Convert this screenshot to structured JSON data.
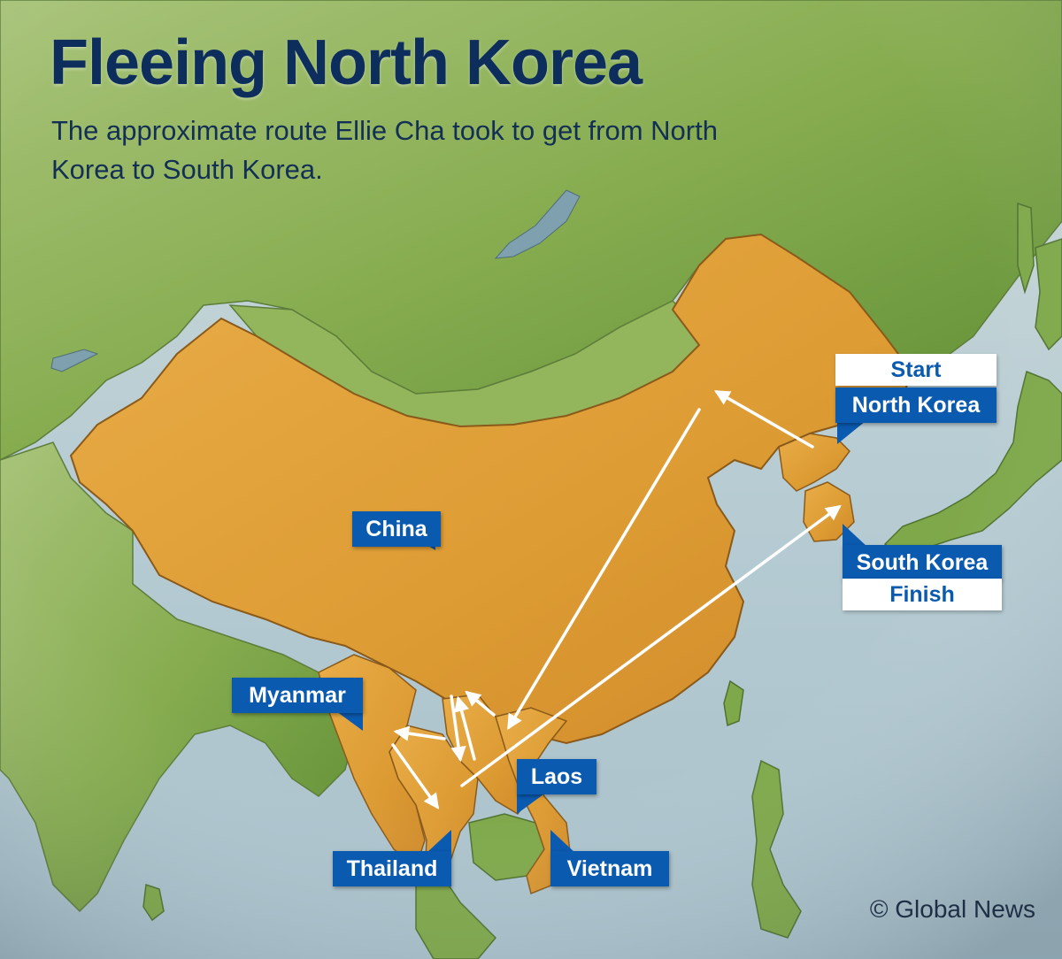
{
  "map": {
    "title": "Fleeing North Korea",
    "subtitle": "The approximate route Ellie Cha took to get from North Korea to South Korea.",
    "labels": {
      "start": "Start",
      "north_korea": "North Korea",
      "china": "China",
      "south_korea": "South Korea",
      "finish": "Finish",
      "myanmar": "Myanmar",
      "laos": "Laos",
      "thailand": "Thailand",
      "vietnam": "Vietnam"
    },
    "credit": "© Global News",
    "route_order": [
      "North Korea",
      "China",
      "Laos",
      "Myanmar",
      "Thailand",
      "South Korea"
    ]
  },
  "colors": {
    "highlight_land": "#e4a23a",
    "other_land": "#7fa84a",
    "sea": "#b9cdd3",
    "label_blue": "#0a5ab0",
    "title_navy": "#0d2e5c",
    "route_arrow": "#ffffff"
  }
}
